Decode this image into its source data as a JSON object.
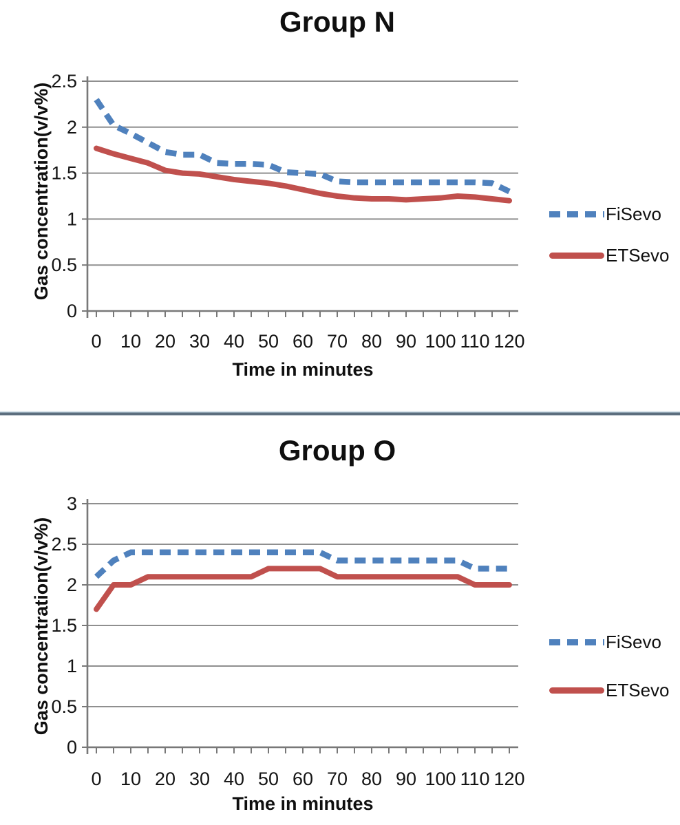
{
  "colors": {
    "fisevo_blue": "#4f81bd",
    "etsevo_red": "#c0504d",
    "gridline_gray": "#8f8f8f",
    "axis_gray": "#787878",
    "text_black": "#141414",
    "separator_slate": "#5c6e7e"
  },
  "chart_data": [
    {
      "type": "line",
      "title": "Group N",
      "xlabel": "Time in minutes",
      "ylabel": "Gas concentration(v/v%)",
      "xlim": [
        0,
        120
      ],
      "ylim": [
        0,
        2.5
      ],
      "grid": "horizontal",
      "legend_position": "right",
      "x_tick_values": [
        0,
        10,
        20,
        30,
        40,
        50,
        60,
        70,
        80,
        90,
        100,
        110,
        120
      ],
      "x_tick_labels": [
        "0",
        "10",
        "20",
        "30",
        "40",
        "50",
        "60",
        "70",
        "80",
        "90",
        "100",
        "110",
        "120"
      ],
      "x_minor_step": 5,
      "y_tick_values": [
        0,
        0.5,
        1,
        1.5,
        2,
        2.5
      ],
      "y_tick_labels": [
        "0",
        "0.5",
        "1",
        "1.5",
        "2",
        "2.5"
      ],
      "x": [
        0,
        5,
        10,
        15,
        20,
        25,
        30,
        35,
        40,
        45,
        50,
        55,
        60,
        65,
        70,
        75,
        80,
        85,
        90,
        95,
        100,
        105,
        110,
        115,
        120
      ],
      "series": [
        {
          "name": "FiSevo",
          "style": "dashed",
          "color": "#4f81bd",
          "values": [
            2.3,
            2.02,
            1.93,
            1.83,
            1.73,
            1.7,
            1.7,
            1.61,
            1.6,
            1.6,
            1.59,
            1.51,
            1.5,
            1.49,
            1.41,
            1.4,
            1.4,
            1.4,
            1.4,
            1.4,
            1.4,
            1.4,
            1.4,
            1.39,
            1.3
          ]
        },
        {
          "name": "ETSevo",
          "style": "solid",
          "color": "#c0504d",
          "values": [
            1.77,
            1.71,
            1.66,
            1.61,
            1.53,
            1.5,
            1.49,
            1.46,
            1.43,
            1.41,
            1.39,
            1.36,
            1.32,
            1.28,
            1.25,
            1.23,
            1.22,
            1.22,
            1.21,
            1.22,
            1.23,
            1.25,
            1.24,
            1.22,
            1.2
          ]
        }
      ]
    },
    {
      "type": "line",
      "title": "Group O",
      "xlabel": "Time in minutes",
      "ylabel": "Gas concentration(v/v%)",
      "xlim": [
        0,
        120
      ],
      "ylim": [
        0,
        3
      ],
      "grid": "horizontal",
      "legend_position": "right",
      "x_tick_values": [
        0,
        10,
        20,
        30,
        40,
        50,
        60,
        70,
        80,
        90,
        100,
        110,
        120
      ],
      "x_tick_labels": [
        "0",
        "10",
        "20",
        "30",
        "40",
        "50",
        "60",
        "70",
        "80",
        "90",
        "100",
        "110",
        "120"
      ],
      "x_minor_step": 5,
      "y_tick_values": [
        0,
        0.5,
        1,
        1.5,
        2,
        2.5,
        3
      ],
      "y_tick_labels": [
        "0",
        "0.5",
        "1",
        "1.5",
        "2",
        "2.5",
        "3"
      ],
      "x": [
        0,
        5,
        10,
        15,
        20,
        25,
        30,
        35,
        40,
        45,
        50,
        55,
        60,
        65,
        70,
        75,
        80,
        85,
        90,
        95,
        100,
        105,
        110,
        115,
        120
      ],
      "series": [
        {
          "name": "FiSevo",
          "style": "dashed",
          "color": "#4f81bd",
          "values": [
            2.1,
            2.3,
            2.4,
            2.4,
            2.4,
            2.4,
            2.4,
            2.4,
            2.4,
            2.4,
            2.4,
            2.4,
            2.4,
            2.4,
            2.3,
            2.3,
            2.3,
            2.3,
            2.3,
            2.3,
            2.3,
            2.3,
            2.2,
            2.2,
            2.2
          ]
        },
        {
          "name": "ETSevo",
          "style": "solid",
          "color": "#c0504d",
          "values": [
            1.7,
            2.0,
            2.0,
            2.1,
            2.1,
            2.1,
            2.1,
            2.1,
            2.1,
            2.1,
            2.2,
            2.2,
            2.2,
            2.2,
            2.1,
            2.1,
            2.1,
            2.1,
            2.1,
            2.1,
            2.1,
            2.1,
            2.0,
            2.0,
            2.0
          ]
        }
      ]
    }
  ]
}
